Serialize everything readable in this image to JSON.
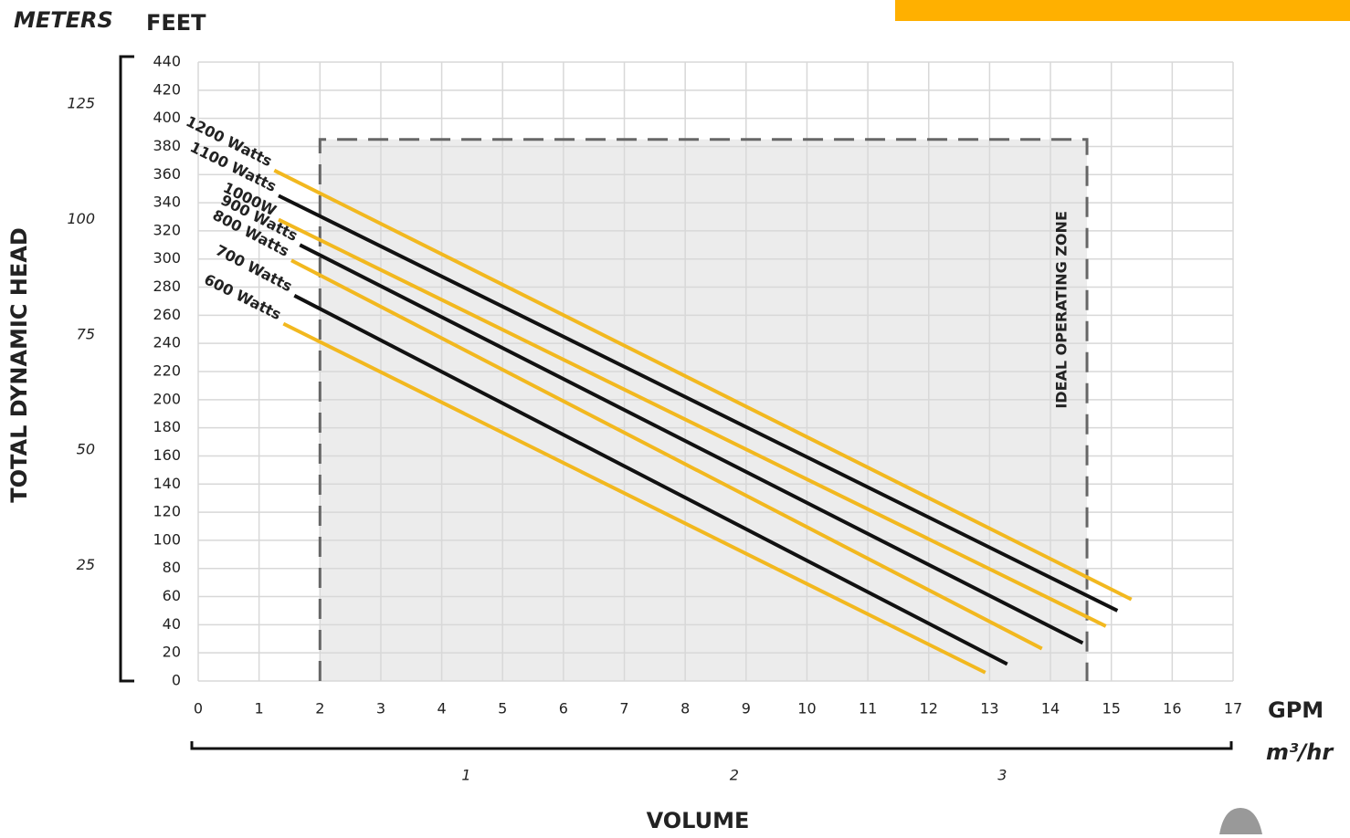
{
  "chart_data": {
    "type": "line",
    "y_title": "TOTAL DYNAMIC HEAD",
    "y_label": "FEET",
    "y2_label": "METERS",
    "x_label": "GPM",
    "x2_label": "m³/hr",
    "x_title": "VOLUME",
    "xlim": [
      0,
      17
    ],
    "xticks": [
      0,
      1,
      2,
      3,
      4,
      5,
      6,
      7,
      8,
      9,
      10,
      11,
      12,
      13,
      14,
      15,
      16,
      17
    ],
    "ylim": [
      0,
      440
    ],
    "yticks": [
      0,
      20,
      40,
      60,
      80,
      100,
      120,
      140,
      160,
      180,
      200,
      220,
      240,
      260,
      280,
      300,
      320,
      340,
      360,
      380,
      400,
      420,
      440
    ],
    "y2lim": [
      0,
      134.1
    ],
    "y2ticks": [
      25,
      50,
      75,
      100,
      125
    ],
    "x2lim": [
      0,
      3.861
    ],
    "x2ticks": [
      1,
      2,
      3
    ],
    "grid": true,
    "zone": {
      "label": "IDEAL OPERATING ZONE",
      "x": [
        2,
        14.6
      ],
      "y": [
        0,
        385
      ]
    },
    "series": [
      {
        "name": "1200 Watts",
        "color": "#f2b81f",
        "x": [
          1.25,
          15.33
        ],
        "values": [
          363,
          58
        ]
      },
      {
        "name": "1100 Watts",
        "color": "#111111",
        "x": [
          1.32,
          15.1
        ],
        "values": [
          345,
          50
        ]
      },
      {
        "name": "1000W",
        "color": "#f2b81f",
        "x": [
          1.32,
          14.91
        ],
        "values": [
          328,
          39
        ]
      },
      {
        "name": "900 Watts",
        "color": "#111111",
        "x": [
          1.67,
          14.53
        ],
        "values": [
          310,
          27
        ]
      },
      {
        "name": "800 Watts",
        "color": "#f2b81f",
        "x": [
          1.53,
          13.86
        ],
        "values": [
          299,
          23
        ]
      },
      {
        "name": "700 Watts",
        "color": "#111111",
        "x": [
          1.58,
          13.29
        ],
        "values": [
          274,
          12
        ]
      },
      {
        "name": "600 Watts",
        "color": "#f2b81f",
        "x": [
          1.4,
          12.93
        ],
        "values": [
          254,
          6
        ]
      }
    ]
  }
}
